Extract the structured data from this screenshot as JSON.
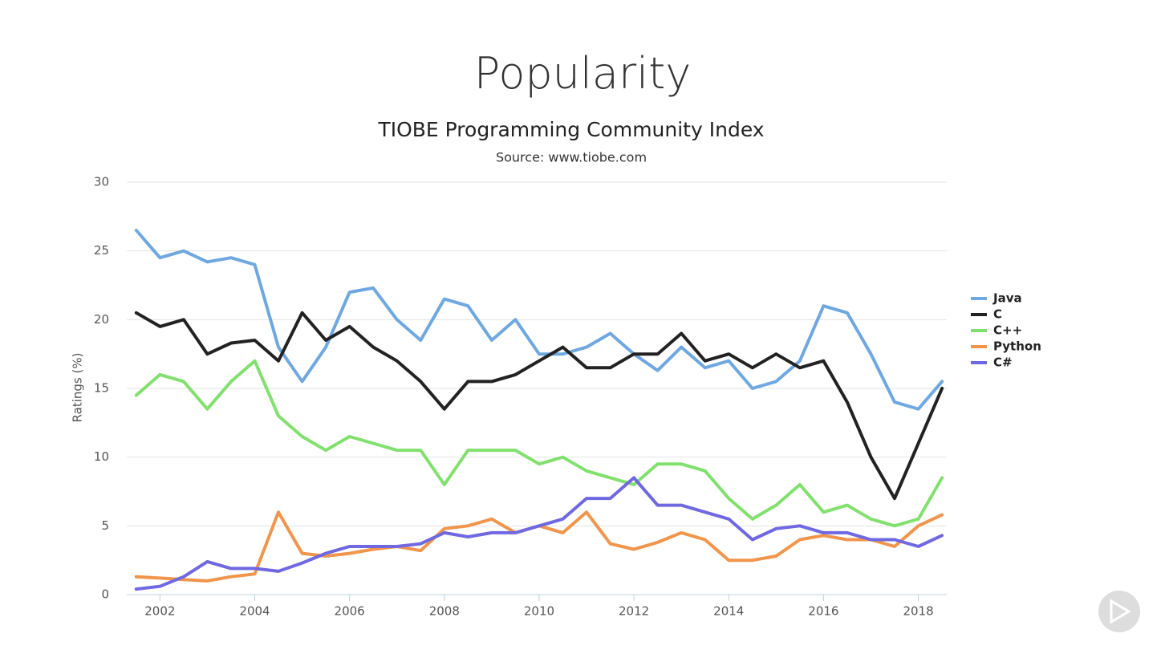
{
  "page_title": "Popularity",
  "chart_data": {
    "type": "line",
    "title": "TIOBE Programming Community Index",
    "subtitle": "Source: www.tiobe.com",
    "y_label": "Ratings (%)",
    "x": [
      2001.5,
      2002,
      2002.5,
      2003,
      2003.5,
      2004,
      2004.5,
      2005,
      2005.5,
      2006,
      2006.5,
      2007,
      2007.5,
      2008,
      2008.5,
      2009,
      2009.5,
      2010,
      2010.5,
      2011,
      2011.5,
      2012,
      2012.5,
      2013,
      2013.5,
      2014,
      2014.5,
      2015,
      2015.5,
      2016,
      2016.5,
      2017,
      2017.5,
      2018,
      2018.5
    ],
    "series": [
      {
        "name": "Java",
        "color": "#6fa8e0",
        "values": [
          26.5,
          24.5,
          25,
          24.2,
          24.5,
          24,
          18,
          15.5,
          18,
          22,
          22.3,
          20,
          18.5,
          21.5,
          21,
          18.5,
          20,
          17.5,
          17.5,
          18,
          19,
          17.5,
          16.3,
          18,
          16.5,
          17,
          15,
          15.5,
          17,
          21,
          20.5,
          17.5,
          14,
          13.5,
          15.5
        ]
      },
      {
        "name": "C",
        "color": "#222222",
        "values": [
          20.5,
          19.5,
          20,
          17.5,
          18.3,
          18.5,
          17,
          20.5,
          18.5,
          19.5,
          18,
          17,
          15.5,
          13.5,
          15.5,
          15.5,
          16,
          17,
          18,
          16.5,
          16.5,
          17.5,
          17.5,
          19,
          17,
          17.5,
          16.5,
          17.5,
          16.5,
          17,
          14,
          10,
          7,
          11,
          15
        ]
      },
      {
        "name": "C++",
        "color": "#82e06e",
        "values": [
          14.5,
          16,
          15.5,
          13.5,
          15.5,
          17,
          13,
          11.5,
          10.5,
          11.5,
          11,
          10.5,
          10.5,
          8,
          10.5,
          10.5,
          10.5,
          9.5,
          10,
          9,
          8.5,
          8,
          9.5,
          9.5,
          9,
          7,
          5.5,
          6.5,
          8,
          6,
          6.5,
          5.5,
          5,
          5.5,
          8.5
        ]
      },
      {
        "name": "Python",
        "color": "#f0954b",
        "values": [
          1.3,
          1.2,
          1.1,
          1,
          1.3,
          1.5,
          6,
          3,
          2.8,
          3,
          3.3,
          3.5,
          3.2,
          4.8,
          5,
          5.5,
          4.5,
          5,
          4.5,
          6,
          3.7,
          3.3,
          3.8,
          4.5,
          4,
          2.5,
          2.5,
          2.8,
          4,
          4.3,
          4,
          4,
          3.5,
          5,
          5.8
        ]
      },
      {
        "name": "C#",
        "color": "#7068e0",
        "values": [
          0.4,
          0.6,
          1.3,
          2.4,
          1.9,
          1.9,
          1.7,
          2.3,
          3,
          3.5,
          3.5,
          3.5,
          3.7,
          4.5,
          4.2,
          4.5,
          4.5,
          5,
          5.5,
          7,
          7,
          8.5,
          6.5,
          6.5,
          6,
          5.5,
          4,
          4.8,
          5,
          4.5,
          4.5,
          4,
          4,
          3.5,
          4.3
        ]
      }
    ],
    "xlim": [
      2001.3,
      2018.6
    ],
    "xticks": [
      2002,
      2004,
      2006,
      2008,
      2010,
      2012,
      2014,
      2016,
      2018
    ],
    "ylim": [
      0,
      30
    ],
    "yticks": [
      0,
      5,
      10,
      15,
      20,
      25,
      30
    ],
    "grid": true,
    "legend": "right"
  }
}
